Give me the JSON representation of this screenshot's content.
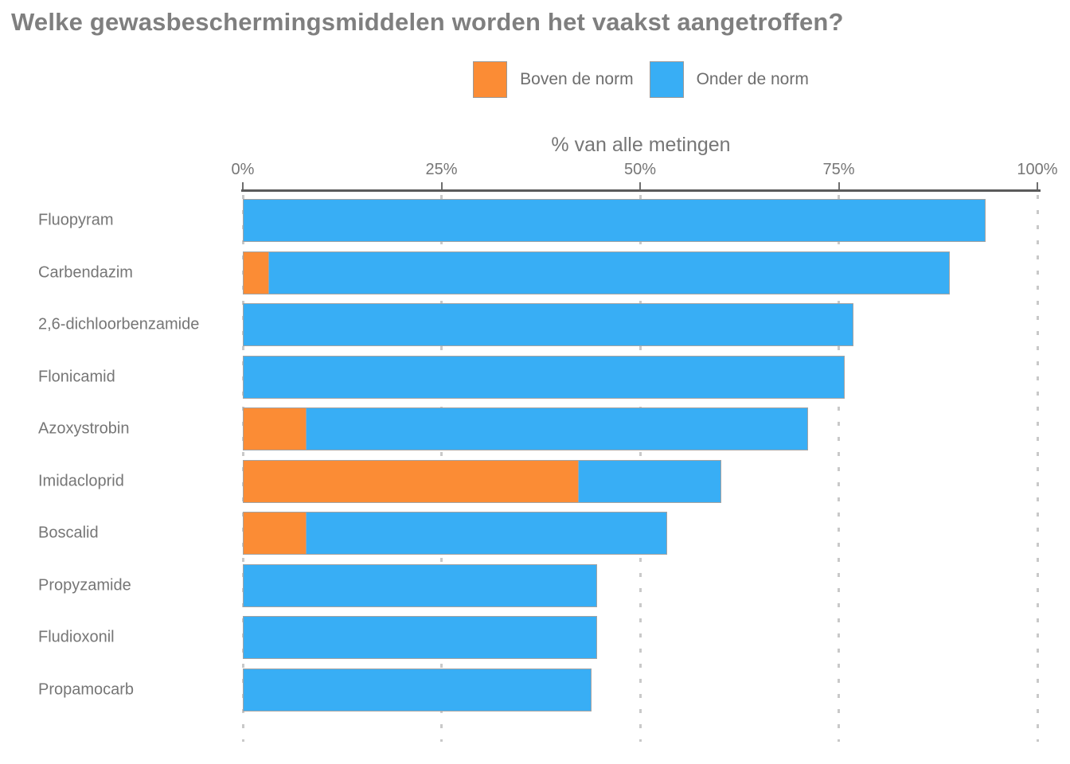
{
  "title": "Welke gewasbeschermingsmiddelen worden het vaakst aangetroffen?",
  "colors": {
    "title_text": "#7f7f7f",
    "axis_text": "#767676",
    "axis_line": "#5b5b5b",
    "gridline": "#c9c9c9",
    "bar_border": "#a3a3a3",
    "above_norm_orange": "#fb8c35",
    "below_norm_blue": "#38aef5"
  },
  "chart_data": {
    "type": "bar",
    "orientation": "horizontal",
    "stacked": true,
    "title": "Welke gewasbeschermingsmiddelen worden het vaakst aangetroffen?",
    "xlabel": "% van alle metingen",
    "ylabel": "",
    "xlim": [
      0,
      100
    ],
    "grid": "dotted-vertical",
    "legend_position": "top-center",
    "x_ticks": [
      {
        "label": "0%",
        "value": 0
      },
      {
        "label": "25%",
        "value": 25
      },
      {
        "label": "50%",
        "value": 50
      },
      {
        "label": "75%",
        "value": 75
      },
      {
        "label": "100%",
        "value": 100
      }
    ],
    "categories": [
      "Fluopyram",
      "Carbendazim",
      "2,6-dichloorbenzamide",
      "Flonicamid",
      "Azoxystrobin",
      "Imidacloprid",
      "Boscalid",
      "Propyzamide",
      "Fludioxonil",
      "Propamocarb"
    ],
    "series": [
      {
        "name": "Boven de norm",
        "color": "#fb8c35",
        "values": [
          0,
          3.3,
          0,
          0,
          8.0,
          42.3,
          8.0,
          0,
          0,
          0
        ]
      },
      {
        "name": "Onder de norm",
        "color": "#38aef5",
        "values": [
          93.5,
          85.8,
          76.9,
          75.8,
          63.2,
          18.0,
          45.5,
          44.6,
          44.6,
          43.9
        ]
      }
    ],
    "totals": [
      93.5,
      89.1,
      76.9,
      75.8,
      71.2,
      60.3,
      53.5,
      44.6,
      44.6,
      43.9
    ]
  }
}
